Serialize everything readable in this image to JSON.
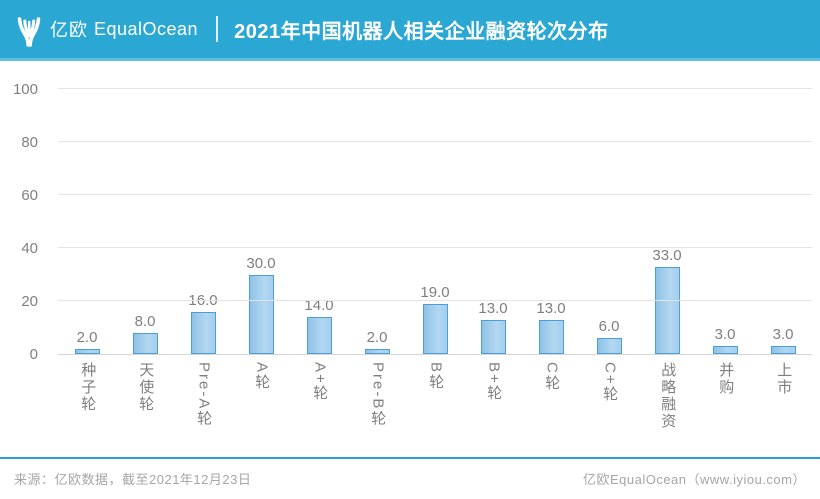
{
  "header": {
    "logo_cn": "亿欧",
    "logo_en": "EqualOcean",
    "title": "2021年中国机器人相关企业融资轮次分布"
  },
  "footer": {
    "source": "来源：亿欧数据，截至2021年12月23日",
    "brand": "亿欧EqualOcean（www.iyiou.com）"
  },
  "colors": {
    "header_bg": "#2BA7D4",
    "bar_fill": "#A5CFEE",
    "bar_border": "#4AA0D6",
    "label_gray": "#7F7F7F"
  },
  "chart_data": {
    "type": "bar",
    "title": "2021年中国机器人相关企业融资轮次分布",
    "categories": [
      "种子轮",
      "天使轮",
      "Pre-A轮",
      "A轮",
      "A+轮",
      "Pre-B轮",
      "B轮",
      "B+轮",
      "C轮",
      "C+轮",
      "战略融资",
      "并购",
      "上市"
    ],
    "values": [
      2,
      8,
      16,
      30,
      14,
      2,
      19,
      13,
      13,
      6,
      33,
      3,
      3
    ],
    "value_labels": [
      "2.0",
      "8.0",
      "16.0",
      "30.0",
      "14.0",
      "2.0",
      "19.0",
      "13.0",
      "13.0",
      "6.0",
      "33.0",
      "3.0",
      "3.0"
    ],
    "xlabel": "",
    "ylabel": "",
    "ylim": [
      0,
      100
    ],
    "yticks": [
      0,
      20,
      40,
      60,
      80,
      100
    ],
    "grid": "horizontal",
    "legend": "none"
  }
}
